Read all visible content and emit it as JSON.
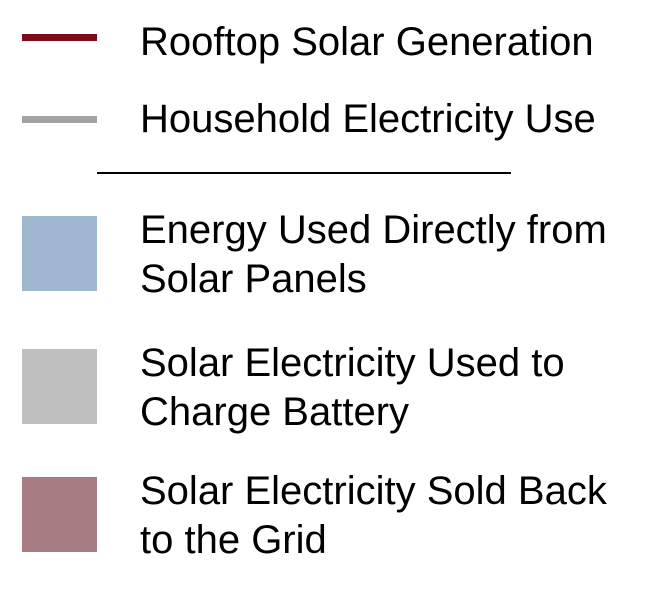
{
  "legend": {
    "lines": [
      {
        "label": "Rooftop Solar Generation",
        "color": "#7a0c1e"
      },
      {
        "label": "Household Electricity Use",
        "color": "#a3a3a3"
      }
    ],
    "areas": [
      {
        "line1": "Energy Used Directly from",
        "line2": "Solar Panels",
        "color": "#a0b8cf"
      },
      {
        "line1": "Solar Electricity Used to",
        "line2": "Charge Battery",
        "color": "#bfbfbf"
      },
      {
        "line1": "Solar Electricity Sold Back",
        "line2": "to the Grid",
        "color": "#a67c82"
      }
    ]
  },
  "chart_data": {
    "type": "area",
    "legend": [
      {
        "name": "Rooftop Solar Generation",
        "kind": "line",
        "color": "#7a0c1e"
      },
      {
        "name": "Household Electricity Use",
        "kind": "line",
        "color": "#a3a3a3"
      },
      {
        "name": "Energy Used Directly from Solar Panels",
        "kind": "area",
        "color": "#a0b8cf"
      },
      {
        "name": "Solar Electricity Used to Charge Battery",
        "kind": "area",
        "color": "#bfbfbf"
      },
      {
        "name": "Solar Electricity Sold Back to the Grid",
        "kind": "area",
        "color": "#a67c82"
      }
    ]
  }
}
